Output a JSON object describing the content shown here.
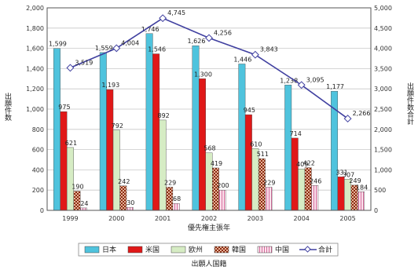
{
  "chart_data": {
    "type": "bar",
    "categories": [
      "1999",
      "2000",
      "2001",
      "2002",
      "2003",
      "2004",
      "2005"
    ],
    "series": [
      {
        "name": "日本",
        "color": "#4fc3dd",
        "values": [
          1599,
          1559,
          1746,
          1626,
          1446,
          1238,
          1177
        ]
      },
      {
        "name": "米国",
        "color": "#e01818",
        "values": [
          975,
          1193,
          1546,
          1300,
          945,
          714,
          331
        ]
      },
      {
        "name": "欧州",
        "color": "#d6ecc4",
        "values": [
          621,
          792,
          892,
          568,
          610,
          409,
          307
        ]
      },
      {
        "name": "韓国",
        "color": "#9a3a1a",
        "values": [
          190,
          242,
          229,
          419,
          511,
          422,
          249
        ]
      },
      {
        "name": "中国",
        "color": "#f6d2e2",
        "values": [
          24,
          30,
          68,
          200,
          229,
          246,
          184
        ]
      }
    ],
    "line_series": {
      "name": "合計",
      "color": "#4040a0",
      "values": [
        3519,
        4004,
        4745,
        4256,
        3843,
        3095,
        2266
      ]
    },
    "y_left": {
      "label": "出願件数",
      "range": [
        0,
        2000
      ],
      "ticks": [
        "0",
        "200",
        "400",
        "600",
        "800",
        "1,000",
        "1,200",
        "1,400",
        "1,600",
        "1,800",
        "2,000"
      ]
    },
    "y_right": {
      "label": "出願件数合計",
      "range": [
        0,
        5000
      ],
      "ticks": [
        "0",
        "500",
        "1,000",
        "1,500",
        "2,000",
        "2,500",
        "3,000",
        "3,500",
        "4,000",
        "4,500",
        "5,000"
      ]
    },
    "xlabel": "優先権主張年",
    "legend_title": "出願人国籍",
    "bar_value_labels": [
      [
        "1,599",
        "975",
        "621",
        "190",
        "24"
      ],
      [
        "1,559",
        "1,193",
        "792",
        "242",
        "30"
      ],
      [
        "1,746",
        "1,546",
        "892",
        "229",
        "68"
      ],
      [
        "1,626",
        "1,300",
        "568",
        "419",
        "200"
      ],
      [
        "1,446",
        "945",
        "610",
        "511",
        "229"
      ],
      [
        "1,238",
        "714",
        "409",
        "422",
        "246"
      ],
      [
        "1,177",
        "331",
        "307",
        "249",
        "184"
      ]
    ],
    "line_value_labels": [
      "3,519",
      "4,004",
      "4,745",
      "4,256",
      "3,843",
      "3,095",
      "2,266"
    ],
    "grid": true,
    "legend_position": "bottom"
  }
}
